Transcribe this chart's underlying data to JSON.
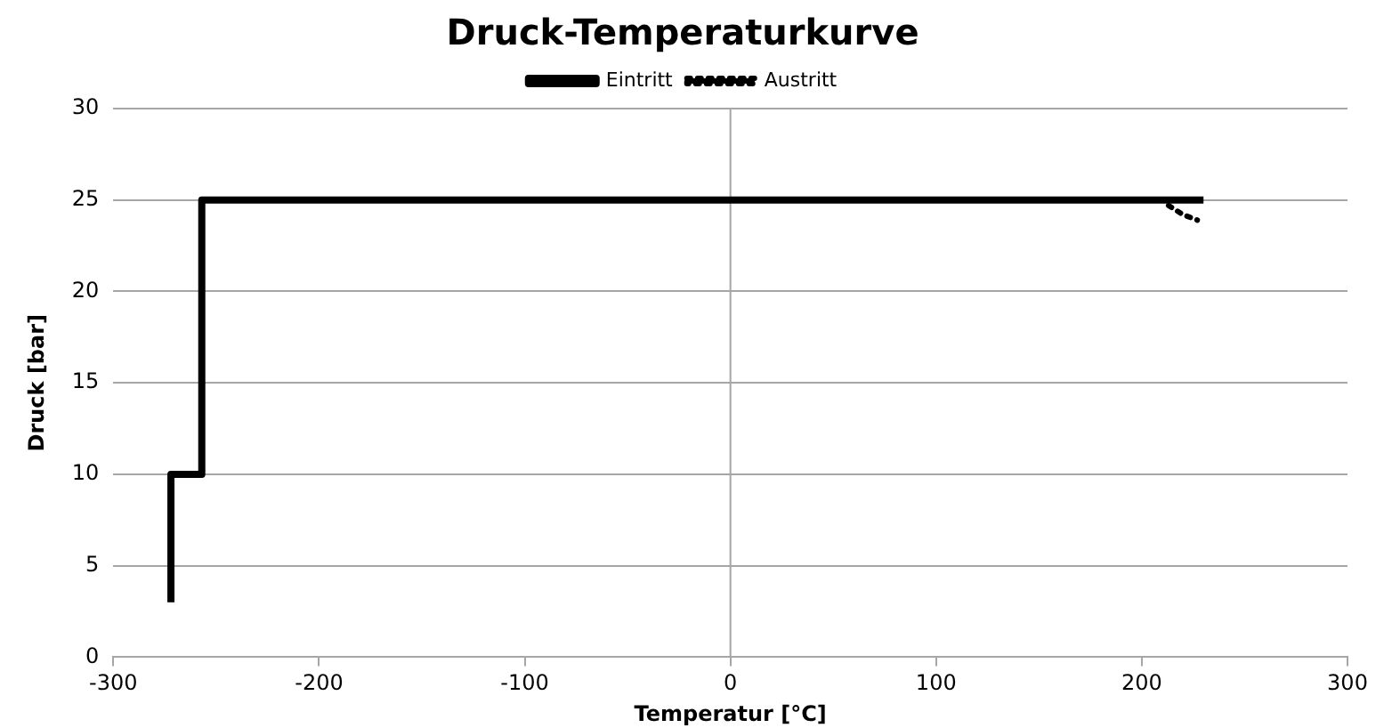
{
  "chart_data": {
    "type": "line",
    "title": "Druck-Temperaturkurve",
    "xlabel": "Temperatur [°C]",
    "ylabel": "Druck [bar]",
    "xlim": [
      -300,
      300
    ],
    "xticks": [
      -300,
      -200,
      -100,
      0,
      100,
      200,
      300
    ],
    "ylim": [
      0,
      30
    ],
    "yticks": [
      0,
      5,
      10,
      15,
      20,
      25,
      30
    ],
    "grid": "y",
    "legend": "top",
    "marker": "none",
    "ref_lines": [
      {
        "axis": "x",
        "value": 0,
        "color": "#a6a6a6"
      }
    ],
    "series": [
      {
        "name": "Eintritt",
        "color": "#000000",
        "line_style": "solid",
        "x": [
          -272,
          -272,
          -257,
          -257,
          230
        ],
        "values": [
          3,
          10,
          10,
          25,
          25
        ]
      },
      {
        "name": "Austritt",
        "color": "#000000",
        "line_style": "dotted",
        "x": [
          213,
          220,
          227
        ],
        "values": [
          24.7,
          24.2,
          23.9
        ]
      }
    ]
  }
}
